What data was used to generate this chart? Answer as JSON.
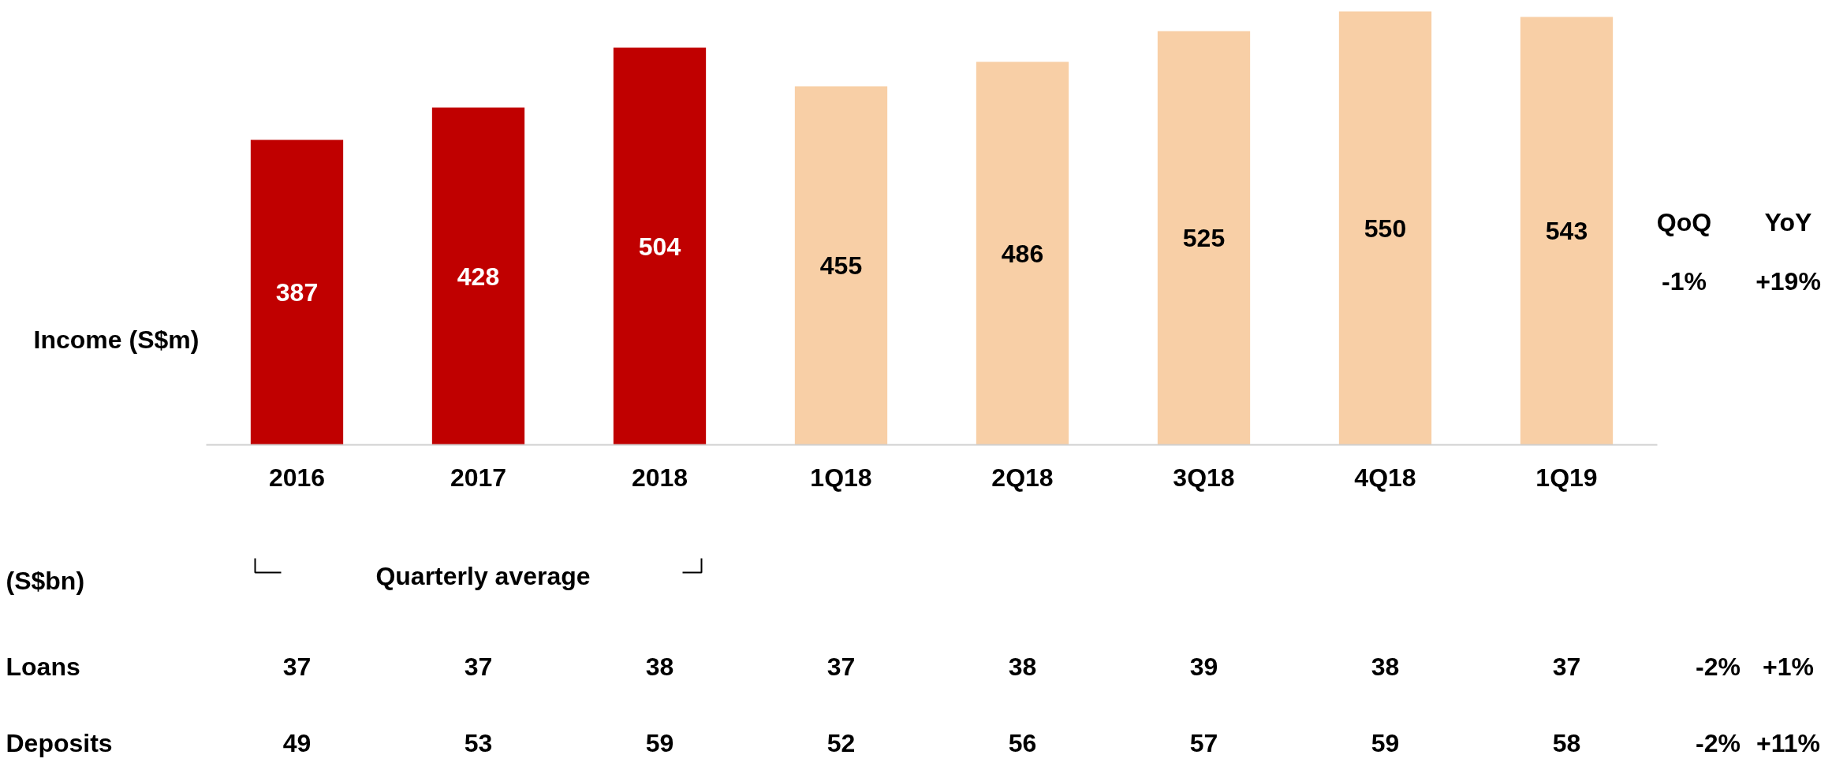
{
  "chart_data": [
    {
      "type": "bar",
      "categories": [
        "2016",
        "2017",
        "2018",
        "1Q18",
        "2Q18",
        "3Q18",
        "4Q18",
        "1Q19"
      ],
      "values": [
        387,
        428,
        504,
        455,
        486,
        525,
        550,
        543
      ],
      "colors": [
        "#c00000",
        "#c00000",
        "#c00000",
        "#f8cfa6",
        "#f8cfa6",
        "#f8cfa6",
        "#f8cfa6",
        "#f8cfa6"
      ],
      "data_labels": true,
      "annotations": [
        "Income (S$m)",
        "QoQ",
        "YoY",
        "-1%",
        "+19%"
      ]
    },
    {
      "type": "heatmap",
      "title": "(S$bn)",
      "categories": [
        null,
        null,
        null,
        null,
        null,
        null,
        null,
        null
      ],
      "y_categories": [
        "Loans",
        "Deposits"
      ],
      "cells": [
        [
          37,
          37,
          38,
          37,
          38,
          39,
          38,
          37
        ],
        [
          49,
          53,
          59,
          52,
          56,
          57,
          59,
          58
        ]
      ],
      "data_labels": true,
      "annotations": [
        "Quarterly average",
        "-2%",
        "+1%",
        "-2%",
        "+11%"
      ]
    }
  ]
}
